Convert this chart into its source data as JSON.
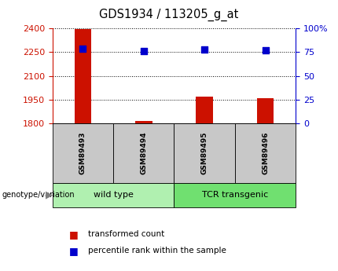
{
  "title": "GDS1934 / 113205_g_at",
  "samples": [
    "GSM89493",
    "GSM89494",
    "GSM89495",
    "GSM89496"
  ],
  "red_values": [
    2395,
    1815,
    1970,
    1958
  ],
  "blue_values": [
    2270,
    2258,
    2265,
    2262
  ],
  "ylim_left": [
    1800,
    2400
  ],
  "ylim_right": [
    0,
    100
  ],
  "yticks_left": [
    1800,
    1950,
    2100,
    2250,
    2400
  ],
  "yticks_right": [
    0,
    25,
    50,
    75,
    100
  ],
  "groups": [
    {
      "label": "wild type",
      "samples": [
        0,
        1
      ],
      "color": "#b0f0b0"
    },
    {
      "label": "TCR transgenic",
      "samples": [
        2,
        3
      ],
      "color": "#70e070"
    }
  ],
  "group_label": "genotype/variation",
  "legend_red": "transformed count",
  "legend_blue": "percentile rank within the sample",
  "bar_color": "#cc1100",
  "dot_color": "#0000cc",
  "left_axis_color": "#cc1100",
  "right_axis_color": "#0000cc",
  "bar_width": 0.28,
  "dot_size": 30,
  "background_label": "#c8c8c8",
  "title_fontsize": 10.5,
  "tick_fontsize": 8,
  "sample_fontsize": 6.5,
  "group_fontsize": 8,
  "legend_fontsize": 7.5
}
